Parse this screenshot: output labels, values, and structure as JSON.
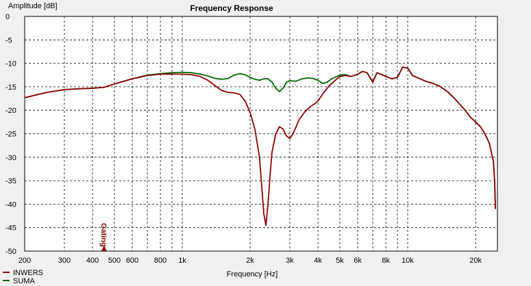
{
  "chart_data": {
    "type": "line",
    "title": "Frequency Response",
    "xlabel": "Frequency [Hz]",
    "ylabel": "Amplitude [dB]",
    "x_scale": "log",
    "xlim": [
      200,
      25000
    ],
    "ylim": [
      -50,
      0
    ],
    "x_ticks": [
      200,
      300,
      400,
      500,
      600,
      800,
      1000,
      2000,
      3000,
      4000,
      5000,
      6000,
      8000,
      10000,
      20000
    ],
    "x_tick_labels": [
      "200",
      "300",
      "400",
      "500",
      "600",
      "800",
      "1k",
      "2k",
      "3k",
      "4k",
      "5k",
      "6k",
      "8k",
      "10k",
      "20k"
    ],
    "x_gridlines": [
      200,
      300,
      400,
      500,
      600,
      700,
      800,
      900,
      1000,
      2000,
      3000,
      4000,
      5000,
      6000,
      7000,
      8000,
      9000,
      10000,
      20000
    ],
    "y_ticks": [
      0,
      -5,
      -10,
      -15,
      -20,
      -25,
      -30,
      -35,
      -40,
      -45,
      -50
    ],
    "y_tick_labels": [
      "0",
      "-5",
      "-10",
      "-15",
      "-20",
      "-25",
      "-30",
      "-35",
      "-40",
      "-45",
      "-50"
    ],
    "grid": true,
    "legend_position": "bottom-left",
    "annotation": {
      "text": "Gating",
      "x": 450,
      "y": -50,
      "color": "#8b0000"
    },
    "series": [
      {
        "name": "INWERS",
        "color": "#8b0000",
        "points": [
          [
            200,
            -17.3
          ],
          [
            250,
            -16.2
          ],
          [
            300,
            -15.6
          ],
          [
            350,
            -15.4
          ],
          [
            400,
            -15.3
          ],
          [
            450,
            -15.1
          ],
          [
            500,
            -14.4
          ],
          [
            600,
            -13.3
          ],
          [
            700,
            -12.6
          ],
          [
            800,
            -12.3
          ],
          [
            900,
            -12.3
          ],
          [
            1000,
            -12.3
          ],
          [
            1100,
            -12.4
          ],
          [
            1200,
            -12.8
          ],
          [
            1300,
            -13.6
          ],
          [
            1400,
            -14.8
          ],
          [
            1500,
            -15.8
          ],
          [
            1600,
            -16.2
          ],
          [
            1700,
            -16.3
          ],
          [
            1800,
            -16.6
          ],
          [
            1900,
            -18.0
          ],
          [
            2000,
            -20.5
          ],
          [
            2100,
            -24.0
          ],
          [
            2200,
            -30.0
          ],
          [
            2250,
            -36.0
          ],
          [
            2300,
            -42.0
          ],
          [
            2350,
            -44.5
          ],
          [
            2400,
            -40.0
          ],
          [
            2450,
            -34.0
          ],
          [
            2500,
            -29.0
          ],
          [
            2600,
            -25.0
          ],
          [
            2700,
            -23.5
          ],
          [
            2800,
            -24.0
          ],
          [
            2900,
            -25.5
          ],
          [
            3000,
            -26.0
          ],
          [
            3100,
            -25.0
          ],
          [
            3300,
            -22.0
          ],
          [
            3500,
            -20.3
          ],
          [
            3700,
            -19.2
          ],
          [
            3900,
            -18.5
          ],
          [
            4000,
            -18.0
          ],
          [
            4200,
            -16.5
          ],
          [
            4500,
            -14.7
          ],
          [
            4800,
            -13.5
          ],
          [
            5000,
            -12.8
          ],
          [
            5300,
            -12.6
          ],
          [
            5600,
            -12.8
          ],
          [
            6000,
            -12.3
          ],
          [
            6300,
            -11.7
          ],
          [
            6600,
            -12.0
          ],
          [
            7000,
            -14.0
          ],
          [
            7300,
            -12.0
          ],
          [
            7600,
            -12.3
          ],
          [
            8000,
            -12.8
          ],
          [
            8500,
            -13.3
          ],
          [
            9000,
            -13.0
          ],
          [
            9500,
            -10.8
          ],
          [
            10000,
            -11.0
          ],
          [
            10500,
            -12.6
          ],
          [
            11000,
            -13.0
          ],
          [
            12000,
            -13.8
          ],
          [
            13000,
            -14.3
          ],
          [
            14000,
            -15.0
          ],
          [
            15000,
            -16.0
          ],
          [
            16000,
            -17.3
          ],
          [
            17000,
            -18.7
          ],
          [
            18000,
            -20.0
          ],
          [
            19000,
            -21.5
          ],
          [
            20000,
            -22.5
          ],
          [
            21000,
            -23.5
          ],
          [
            22000,
            -25.0
          ],
          [
            23000,
            -27.0
          ],
          [
            23500,
            -29.0
          ],
          [
            24000,
            -31.0
          ],
          [
            24300,
            -35.0
          ],
          [
            24500,
            -41.0
          ]
        ]
      },
      {
        "name": "SUMA",
        "color": "#006400",
        "points": [
          [
            200,
            -17.3
          ],
          [
            250,
            -16.2
          ],
          [
            300,
            -15.6
          ],
          [
            350,
            -15.4
          ],
          [
            400,
            -15.3
          ],
          [
            450,
            -15.1
          ],
          [
            500,
            -14.4
          ],
          [
            600,
            -13.3
          ],
          [
            700,
            -12.5
          ],
          [
            800,
            -12.2
          ],
          [
            900,
            -12.0
          ],
          [
            1000,
            -11.9
          ],
          [
            1100,
            -12.0
          ],
          [
            1200,
            -12.3
          ],
          [
            1300,
            -12.7
          ],
          [
            1400,
            -13.2
          ],
          [
            1500,
            -13.4
          ],
          [
            1600,
            -13.2
          ],
          [
            1700,
            -12.5
          ],
          [
            1800,
            -12.2
          ],
          [
            1900,
            -12.4
          ],
          [
            2000,
            -13.0
          ],
          [
            2100,
            -13.4
          ],
          [
            2200,
            -13.6
          ],
          [
            2300,
            -13.3
          ],
          [
            2400,
            -13.3
          ],
          [
            2500,
            -14.0
          ],
          [
            2600,
            -15.3
          ],
          [
            2700,
            -16.0
          ],
          [
            2800,
            -15.3
          ],
          [
            2900,
            -14.0
          ],
          [
            3000,
            -13.7
          ],
          [
            3200,
            -13.8
          ],
          [
            3400,
            -13.3
          ],
          [
            3600,
            -13.1
          ],
          [
            3800,
            -13.2
          ],
          [
            4000,
            -13.6
          ],
          [
            4200,
            -14.3
          ],
          [
            4400,
            -14.0
          ],
          [
            4600,
            -13.3
          ],
          [
            5000,
            -12.5
          ],
          [
            5300,
            -12.4
          ],
          [
            5600,
            -12.8
          ],
          [
            6000,
            -12.3
          ],
          [
            6300,
            -11.7
          ],
          [
            6600,
            -12.0
          ],
          [
            7000,
            -14.0
          ],
          [
            7300,
            -12.0
          ],
          [
            7600,
            -12.3
          ],
          [
            8000,
            -12.8
          ],
          [
            8500,
            -13.3
          ],
          [
            9000,
            -13.0
          ],
          [
            9500,
            -10.8
          ],
          [
            10000,
            -11.0
          ],
          [
            10500,
            -12.6
          ],
          [
            11000,
            -13.0
          ],
          [
            12000,
            -13.8
          ],
          [
            13000,
            -14.3
          ],
          [
            14000,
            -15.0
          ],
          [
            15000,
            -16.0
          ],
          [
            16000,
            -17.3
          ],
          [
            17000,
            -18.7
          ],
          [
            18000,
            -20.0
          ],
          [
            19000,
            -21.5
          ],
          [
            20000,
            -22.5
          ],
          [
            21000,
            -23.5
          ],
          [
            22000,
            -25.0
          ],
          [
            23000,
            -27.0
          ],
          [
            23500,
            -29.0
          ],
          [
            24000,
            -31.0
          ],
          [
            24300,
            -35.0
          ],
          [
            24500,
            -41.0
          ]
        ]
      }
    ]
  }
}
